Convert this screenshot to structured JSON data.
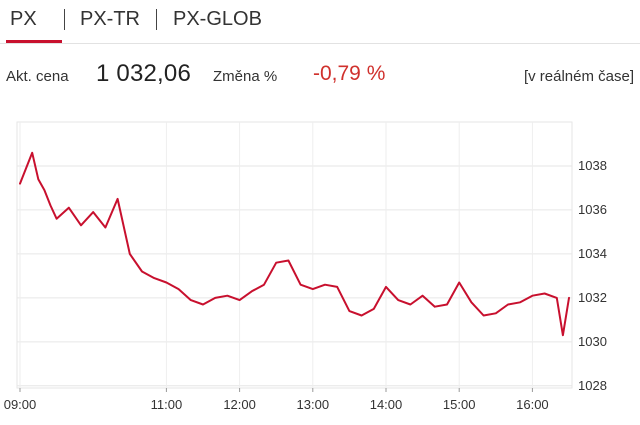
{
  "tabs": [
    {
      "label": "PX",
      "active": true
    },
    {
      "label": "PX-TR",
      "active": false
    },
    {
      "label": "PX-GLOB",
      "active": false
    }
  ],
  "quote": {
    "price_label": "Akt. cena",
    "price": "1 032,06",
    "change_label": "Změna %",
    "change": "-0,79 %",
    "live_label": "[v reálném čase]"
  },
  "colors": {
    "accent": "#c8102e",
    "negative": "#d0312d",
    "grid": "#e6e6e6"
  },
  "chart_data": {
    "type": "line",
    "series": [
      {
        "x": [
          "09:00",
          "09:10",
          "09:15",
          "09:20",
          "09:25",
          "09:30",
          "09:40",
          "09:50",
          "10:00",
          "10:10",
          "10:20",
          "10:30",
          "10:40",
          "10:50",
          "11:00",
          "11:10",
          "11:20",
          "11:30",
          "11:40",
          "11:50",
          "12:00",
          "12:10",
          "12:20",
          "12:30",
          "12:40",
          "12:50",
          "13:00",
          "13:10",
          "13:20",
          "13:30",
          "13:40",
          "13:50",
          "14:00",
          "14:10",
          "14:20",
          "14:30",
          "14:40",
          "14:50",
          "15:00",
          "15:10",
          "15:20",
          "15:30",
          "15:40",
          "15:50",
          "16:00",
          "16:10",
          "16:20",
          "16:25",
          "16:30"
        ],
        "values": [
          1037.2,
          1038.6,
          1037.4,
          1036.9,
          1036.2,
          1035.6,
          1036.1,
          1035.3,
          1035.9,
          1035.2,
          1036.5,
          1034.0,
          1033.2,
          1032.9,
          1032.7,
          1032.4,
          1031.9,
          1031.7,
          1032.0,
          1032.1,
          1031.9,
          1032.3,
          1032.6,
          1033.6,
          1033.7,
          1032.6,
          1032.4,
          1032.6,
          1032.5,
          1031.4,
          1031.2,
          1031.5,
          1032.5,
          1031.9,
          1031.7,
          1032.1,
          1031.6,
          1031.7,
          1032.7,
          1031.8,
          1031.2,
          1031.3,
          1031.7,
          1031.8,
          1032.1,
          1032.2,
          1032.0,
          1030.3,
          1032.0
        ]
      }
    ],
    "x_ticks": [
      "09:00",
      "11:00",
      "12:00",
      "13:00",
      "14:00",
      "15:00",
      "16:00"
    ],
    "y_ticks": [
      "1028",
      "1030",
      "1032",
      "1034",
      "1036",
      "1038"
    ],
    "ylim": [
      1027.9,
      1040.0
    ],
    "grid": true
  }
}
